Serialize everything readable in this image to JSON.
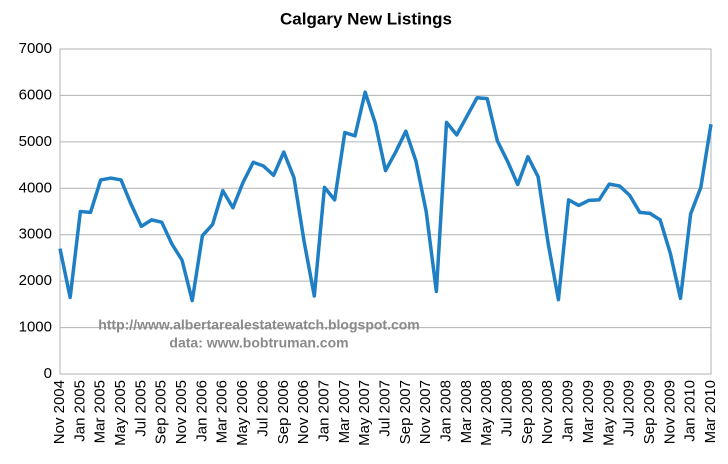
{
  "chart_data": {
    "type": "line",
    "title": "Calgary New Listings",
    "annotations": [
      "http://www.albertarealestatewatch.blogspot.com",
      "data: www.bobtruman.com"
    ],
    "categories": [
      "Nov 2004",
      null,
      "Jan 2005",
      null,
      "Mar 2005",
      null,
      "May 2005",
      null,
      "Jul 2005",
      null,
      "Sep 2005",
      null,
      "Nov 2005",
      null,
      "Jan 2006",
      null,
      "Mar 2006",
      null,
      "May 2006",
      null,
      "Jul 2006",
      null,
      "Sep 2006",
      null,
      "Nov 2006",
      null,
      "Jan 2007",
      null,
      "Mar 2007",
      null,
      "May 2007",
      null,
      "Jul 2007",
      null,
      "Sep 2007",
      null,
      "Nov 2007",
      null,
      "Jan 2008",
      null,
      "Mar 2008",
      null,
      "May 2008",
      null,
      "Jul 2008",
      null,
      "Sep 2008",
      null,
      "Nov 2008",
      null,
      "Jan 2009",
      null,
      "Mar 2009",
      null,
      "May 2009",
      null,
      "Jul 2009",
      null,
      "Sep 2009",
      null,
      "Nov 2009",
      null,
      "Jan 2010",
      null,
      "Mar 2010"
    ],
    "values": [
      2700,
      1650,
      3500,
      3480,
      4180,
      4220,
      4180,
      3650,
      3180,
      3320,
      3270,
      2800,
      2450,
      1580,
      2980,
      3220,
      3950,
      3580,
      4130,
      4560,
      4480,
      4280,
      4780,
      4230,
      2850,
      1680,
      4020,
      3750,
      5200,
      5130,
      6070,
      5400,
      4380,
      4780,
      5230,
      4580,
      3500,
      1780,
      5420,
      5150,
      5550,
      5950,
      5930,
      5020,
      4580,
      4080,
      4680,
      4250,
      2800,
      1600,
      3750,
      3630,
      3740,
      3750,
      4090,
      4050,
      3850,
      3480,
      3460,
      3320,
      2600,
      1630,
      3450,
      4020,
      5380
    ],
    "color": "#1f7fc4",
    "ylim": [
      0,
      7000
    ],
    "yticks": [
      0,
      1000,
      2000,
      3000,
      4000,
      5000,
      6000,
      7000
    ],
    "grid": true
  }
}
